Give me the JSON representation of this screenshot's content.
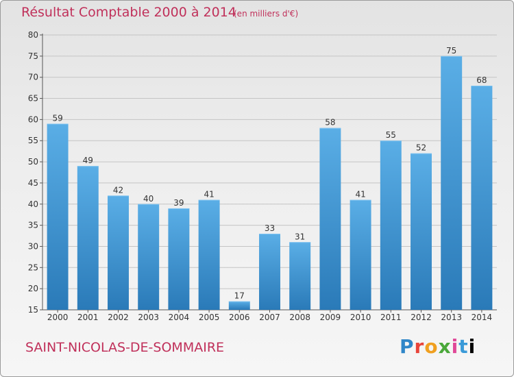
{
  "header": {
    "title": "Résultat Comptable 2000 à 2014",
    "subtitle": "(en milliers d'€)"
  },
  "footer": {
    "commune": "SAINT-NICOLAS-DE-SOMMAIRE",
    "logo_letters": [
      "P",
      "r",
      "o",
      "x",
      "i",
      "t",
      "i"
    ]
  },
  "colors": {
    "accent": "#c0305a",
    "bar_top": "#5aaee6",
    "bar_bottom": "#2a7ab8"
  },
  "chart_data": {
    "type": "bar",
    "title": "Résultat Comptable 2000 à 2014",
    "subtitle": "(en milliers d'€)",
    "categories": [
      "2000",
      "2001",
      "2002",
      "2003",
      "2004",
      "2005",
      "2006",
      "2007",
      "2008",
      "2009",
      "2010",
      "2011",
      "2012",
      "2013",
      "2014"
    ],
    "values": [
      59,
      49,
      42,
      40,
      39,
      41,
      17,
      33,
      31,
      58,
      41,
      55,
      52,
      75,
      68
    ],
    "ylim": [
      15,
      80
    ],
    "yticks": [
      15,
      20,
      25,
      30,
      35,
      40,
      45,
      50,
      55,
      60,
      65,
      70,
      75,
      80
    ],
    "grid": true,
    "legend": "none"
  }
}
